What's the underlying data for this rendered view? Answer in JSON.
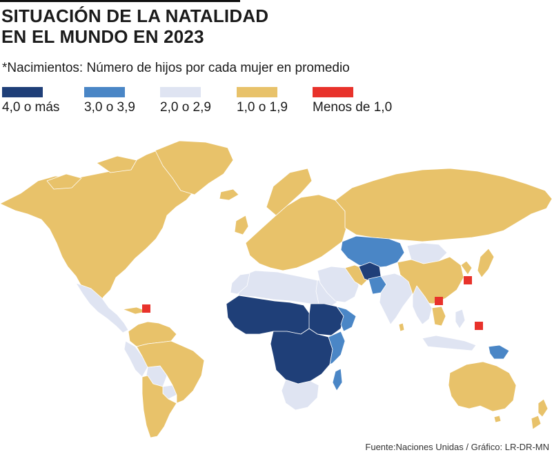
{
  "title_line1": "SITUACIÓN DE LA NATALIDAD",
  "title_line2": "EN EL MUNDO EN 2023",
  "subtitle": "*Nacimientos: Número de hijos por cada mujer en promedio",
  "legend": [
    {
      "label": "4,0 o más",
      "color": "#1f3f78"
    },
    {
      "label": "3,0 o 3,9",
      "color": "#4a86c6"
    },
    {
      "label": "2,0 o 2,9",
      "color": "#dfe4f2"
    },
    {
      "label": "1,0 o 1,9",
      "color": "#e8c26a"
    },
    {
      "label": "Menos de 1,0",
      "color": "#e8322b"
    }
  ],
  "source": "Fuente:Naciones Unidas / Gráfico: LR-DR-MN",
  "colors": {
    "ocean": "#ffffff",
    "border": "#ffffff"
  }
}
